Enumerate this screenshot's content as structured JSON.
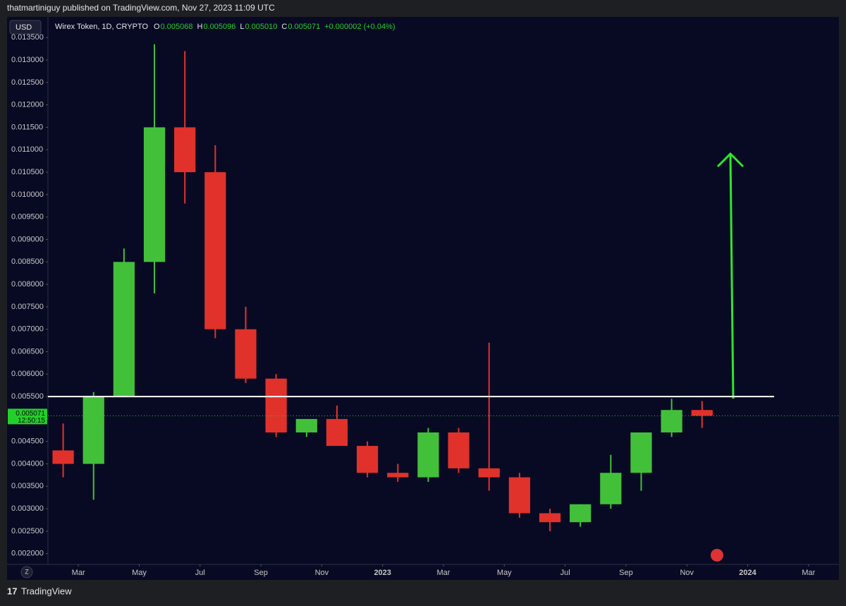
{
  "header": {
    "text": "thatmartiniguy published on TradingView.com, Nov 27, 2023 11:09 UTC"
  },
  "currency": "USD",
  "footer": {
    "logo": "TradingView",
    "zoom_button": "Z"
  },
  "chart_data": {
    "type": "candlestick",
    "title": "Wirex Token, 1D, CRYPTO",
    "legend": [
      {
        "name": "O",
        "value": 0.005068
      },
      {
        "name": "H",
        "value": 0.005096
      },
      {
        "name": "L",
        "value": {
          "value": 0.00501,
          "label": "0.005010"
        }
      },
      {
        "name": "C",
        "value": 0.005071
      }
    ],
    "change": "+0.000002 (+0.04%)",
    "x": [
      "2022-02",
      "2022-03",
      "2022-04",
      "2022-05",
      "2022-06",
      "2022-07",
      "2022-08",
      "2022-09",
      "2022-10",
      "2022-11",
      "2022-12",
      "2023-01",
      "2023-02",
      "2023-03",
      "2023-04",
      "2023-05",
      "2023-06",
      "2023-07",
      "2023-08",
      "2023-09",
      "2023-10",
      "2023-11"
    ],
    "open": [
      0.0043,
      0.004,
      0.0055,
      0.0085,
      0.0115,
      0.0105,
      0.007,
      0.0059,
      0.0047,
      0.005,
      0.0044,
      0.0038,
      0.0037,
      0.0047,
      0.0039,
      0.0037,
      0.0029,
      0.0027,
      0.0031,
      0.0038,
      0.0047,
      0.0052
    ],
    "high": [
      0.0049,
      0.0056,
      0.0088,
      0.01335,
      0.0132,
      0.0111,
      0.0075,
      0.006,
      0.005,
      0.0053,
      0.0045,
      0.004,
      0.0048,
      0.0048,
      0.0067,
      0.0038,
      0.003,
      0.0031,
      0.0042,
      0.0047,
      0.00545,
      0.0054
    ],
    "low": [
      0.0037,
      0.0032,
      0.0055,
      0.0078,
      0.0098,
      0.0068,
      0.0058,
      0.0046,
      0.0046,
      0.0044,
      0.0037,
      0.0036,
      0.0036,
      0.0038,
      0.0034,
      0.0028,
      0.0025,
      0.0026,
      0.003,
      0.0034,
      0.0046,
      0.0048
    ],
    "close": [
      0.004,
      0.0055,
      0.0085,
      0.0115,
      0.0105,
      0.007,
      0.0059,
      0.0047,
      0.005,
      0.0044,
      0.0038,
      0.0037,
      0.0047,
      0.0039,
      0.0037,
      0.0029,
      0.0027,
      0.0031,
      0.0038,
      0.0047,
      0.0052,
      0.005071
    ],
    "up_color": "#43c03a",
    "down_color": "#e0322b",
    "last_price": 0.005071,
    "countdown": "12:50:15",
    "last_color": "#22d02a",
    "level": 0.0055,
    "level_color": "#ffffff",
    "ylim": [
      0.00176,
      0.01396
    ],
    "yticks": [
      {
        "value": 0.002,
        "label": "0.002000"
      },
      {
        "value": 0.0025,
        "label": "0.002500"
      },
      {
        "value": 0.003,
        "label": "0.003000"
      },
      {
        "value": 0.0035,
        "label": "0.003500"
      },
      {
        "value": 0.004,
        "label": "0.004000"
      },
      {
        "value": 0.0045,
        "label": "0.004500"
      },
      {
        "value": 0.005,
        "label": "0.005000"
      },
      {
        "value": 0.0055,
        "label": "0.005500"
      },
      {
        "value": 0.006,
        "label": "0.006000"
      },
      {
        "value": 0.0065,
        "label": "0.006500"
      },
      {
        "value": 0.007,
        "label": "0.007000"
      },
      {
        "value": 0.0075,
        "label": "0.007500"
      },
      {
        "value": 0.008,
        "label": "0.008000"
      },
      {
        "value": 0.0085,
        "label": "0.008500"
      },
      {
        "value": 0.009,
        "label": "0.009000"
      },
      {
        "value": 0.0095,
        "label": "0.009500"
      },
      {
        "value": 0.01,
        "label": "0.010000"
      },
      {
        "value": 0.0105,
        "label": "0.010500"
      },
      {
        "value": 0.011,
        "label": "0.011000"
      },
      {
        "value": 0.0115,
        "label": "0.011500"
      },
      {
        "value": 0.012,
        "label": "0.012000"
      },
      {
        "value": 0.0125,
        "label": "0.012500"
      },
      {
        "value": 0.013,
        "label": "0.013000"
      },
      {
        "value": 0.0135,
        "label": "0.013500"
      }
    ],
    "xlim": [
      "2022-02",
      "2024-04"
    ],
    "xticks": [
      {
        "value": "2022-03",
        "label": "Mar"
      },
      {
        "value": "2022-05",
        "label": "May"
      },
      {
        "value": "2022-07",
        "label": "Jul"
      },
      {
        "value": "2022-09",
        "label": "Sep"
      },
      {
        "value": "2022-11",
        "label": "Nov"
      },
      {
        "value": "2023-01",
        "label": "2023"
      },
      {
        "value": "2023-03",
        "label": "Mar"
      },
      {
        "value": "2023-05",
        "label": "May"
      },
      {
        "value": "2023-07",
        "label": "Jul"
      },
      {
        "value": "2023-09",
        "label": "Sep"
      },
      {
        "value": "2023-11",
        "label": "Nov"
      },
      {
        "value": "2024-01",
        "label": "2024"
      },
      {
        "value": "2024-03",
        "label": "Mar"
      }
    ]
  }
}
